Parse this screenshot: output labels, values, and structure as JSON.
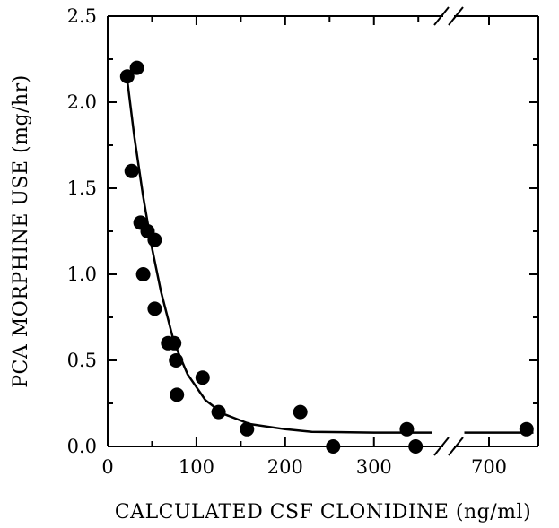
{
  "chart_data": {
    "type": "scatter",
    "xlabel": "CALCULATED CSF CLONIDINE (ng/ml)",
    "ylabel": "PCA MORPHINE USE (mg/hr)",
    "x_ticks": [
      "0",
      "100",
      "200",
      "300",
      "700"
    ],
    "y_ticks": [
      "0.0",
      "0.5",
      "1.0",
      "1.5",
      "2.0",
      "2.5"
    ],
    "xlim_main": [
      0,
      370
    ],
    "x_break": {
      "after": 370,
      "resume": 670
    },
    "xlim_right": [
      670,
      750
    ],
    "ylim": [
      0,
      2.5
    ],
    "grid": false,
    "points": [
      {
        "x": 22,
        "y": 2.15
      },
      {
        "x": 33,
        "y": 2.2
      },
      {
        "x": 27,
        "y": 1.6
      },
      {
        "x": 37,
        "y": 1.3
      },
      {
        "x": 45,
        "y": 1.25
      },
      {
        "x": 53,
        "y": 1.2
      },
      {
        "x": 40,
        "y": 1.0
      },
      {
        "x": 53,
        "y": 0.8
      },
      {
        "x": 68,
        "y": 0.6
      },
      {
        "x": 75,
        "y": 0.6
      },
      {
        "x": 77,
        "y": 0.5
      },
      {
        "x": 78,
        "y": 0.3
      },
      {
        "x": 107,
        "y": 0.4
      },
      {
        "x": 125,
        "y": 0.2
      },
      {
        "x": 157,
        "y": 0.1
      },
      {
        "x": 217,
        "y": 0.2
      },
      {
        "x": 254,
        "y": 0.0
      },
      {
        "x": 337,
        "y": 0.1
      },
      {
        "x": 347,
        "y": 0.0
      },
      {
        "x": 738,
        "y": 0.1
      }
    ],
    "fit_curve": [
      {
        "x": 22,
        "y": 2.13
      },
      {
        "x": 30,
        "y": 1.8
      },
      {
        "x": 40,
        "y": 1.45
      },
      {
        "x": 50,
        "y": 1.15
      },
      {
        "x": 60,
        "y": 0.9
      },
      {
        "x": 75,
        "y": 0.6
      },
      {
        "x": 90,
        "y": 0.42
      },
      {
        "x": 110,
        "y": 0.27
      },
      {
        "x": 130,
        "y": 0.19
      },
      {
        "x": 160,
        "y": 0.13
      },
      {
        "x": 200,
        "y": 0.1
      },
      {
        "x": 230,
        "y": 0.085
      },
      {
        "x": 300,
        "y": 0.08
      },
      {
        "x": 365,
        "y": 0.08
      },
      {
        "x": 675,
        "y": 0.08
      },
      {
        "x": 745,
        "y": 0.08
      }
    ]
  }
}
